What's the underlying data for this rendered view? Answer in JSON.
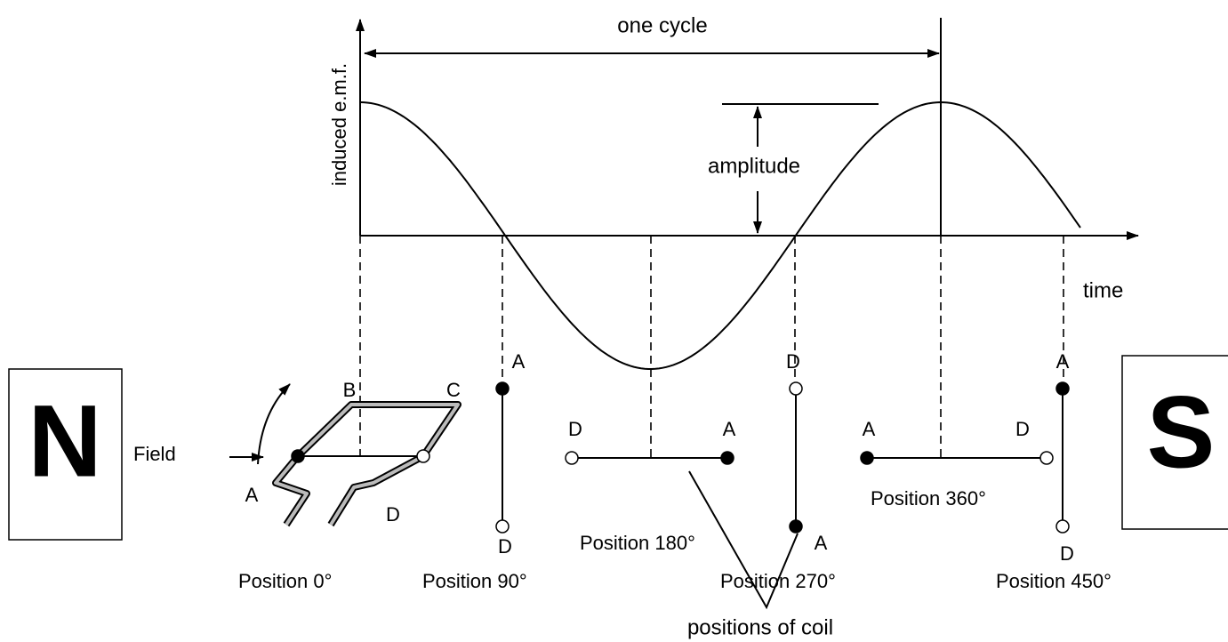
{
  "graph": {
    "cycle": "one cycle",
    "y_label": "induced e.m.f.",
    "x_label": "time",
    "amplitude": "amplitude"
  },
  "magnets": {
    "north": "N",
    "south": "S"
  },
  "field": "Field",
  "coil": {
    "corners": [
      "A",
      "B",
      "C",
      "D"
    ]
  },
  "positions": [
    {
      "label": "Position 0°"
    },
    {
      "label": "Position 90°",
      "letters": [
        "A",
        "D"
      ]
    },
    {
      "label": "Position 180°",
      "letters": [
        "D",
        "A"
      ]
    },
    {
      "label": "Position 270°",
      "letters": [
        "D",
        "A"
      ]
    },
    {
      "label": "Position 360°",
      "letters": [
        "A",
        "D"
      ]
    },
    {
      "label": "Position 450°",
      "letters": [
        "A",
        "D"
      ]
    }
  ],
  "pointer": "positions of coil"
}
